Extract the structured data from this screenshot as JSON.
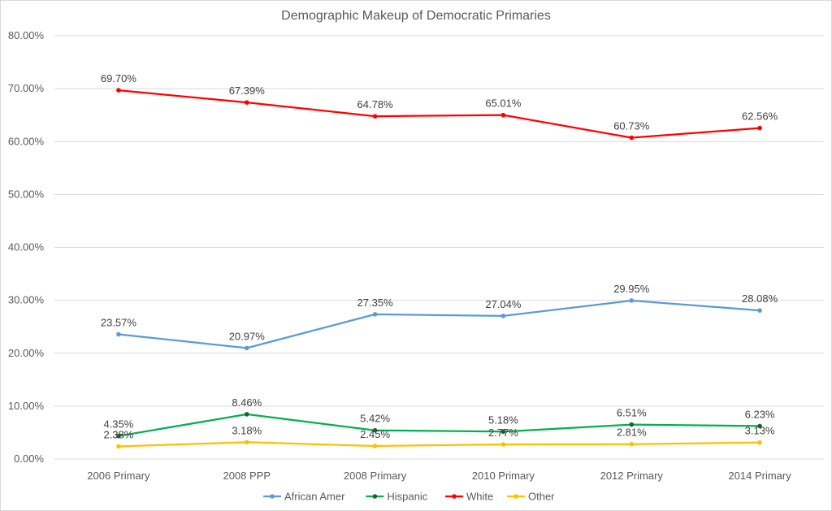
{
  "chart_data": {
    "type": "line",
    "title": "Demographic Makeup of Democratic Primaries",
    "categories": [
      "2006 Primary",
      "2008 PPP",
      "2008 Primary",
      "2010 Primary",
      "2012 Primary",
      "2014 Primary"
    ],
    "y_ticks": [
      "0.00%",
      "10.00%",
      "20.00%",
      "30.00%",
      "40.00%",
      "50.00%",
      "60.00%",
      "70.00%",
      "80.00%"
    ],
    "ylim": [
      0,
      80
    ],
    "grid": true,
    "legend_position": "bottom",
    "series": [
      {
        "name": "African Amer",
        "color": "#5b9bd5",
        "values": [
          23.57,
          20.97,
          27.35,
          27.04,
          29.95,
          28.08
        ],
        "labels": [
          "23.57%",
          "20.97%",
          "27.35%",
          "27.04%",
          "29.95%",
          "28.08%"
        ]
      },
      {
        "name": "Hispanic",
        "color": "#00b050",
        "marker_color": "#1f5f2f",
        "values": [
          4.35,
          8.46,
          5.42,
          5.18,
          6.51,
          6.23
        ],
        "labels": [
          "4.35%",
          "8.46%",
          "5.42%",
          "5.18%",
          "6.51%",
          "6.23%"
        ]
      },
      {
        "name": "White",
        "color": "#ff0000",
        "values": [
          69.7,
          67.39,
          64.78,
          65.01,
          60.73,
          62.56
        ],
        "labels": [
          "69.70%",
          "67.39%",
          "64.78%",
          "65.01%",
          "60.73%",
          "62.56%"
        ]
      },
      {
        "name": "Other",
        "color": "#ffc000",
        "values": [
          2.38,
          3.18,
          2.45,
          2.77,
          2.81,
          3.13
        ],
        "labels": [
          "2.38%",
          "3.18%",
          "2.45%",
          "2.77%",
          "2.81%",
          "3.13%"
        ]
      }
    ]
  }
}
